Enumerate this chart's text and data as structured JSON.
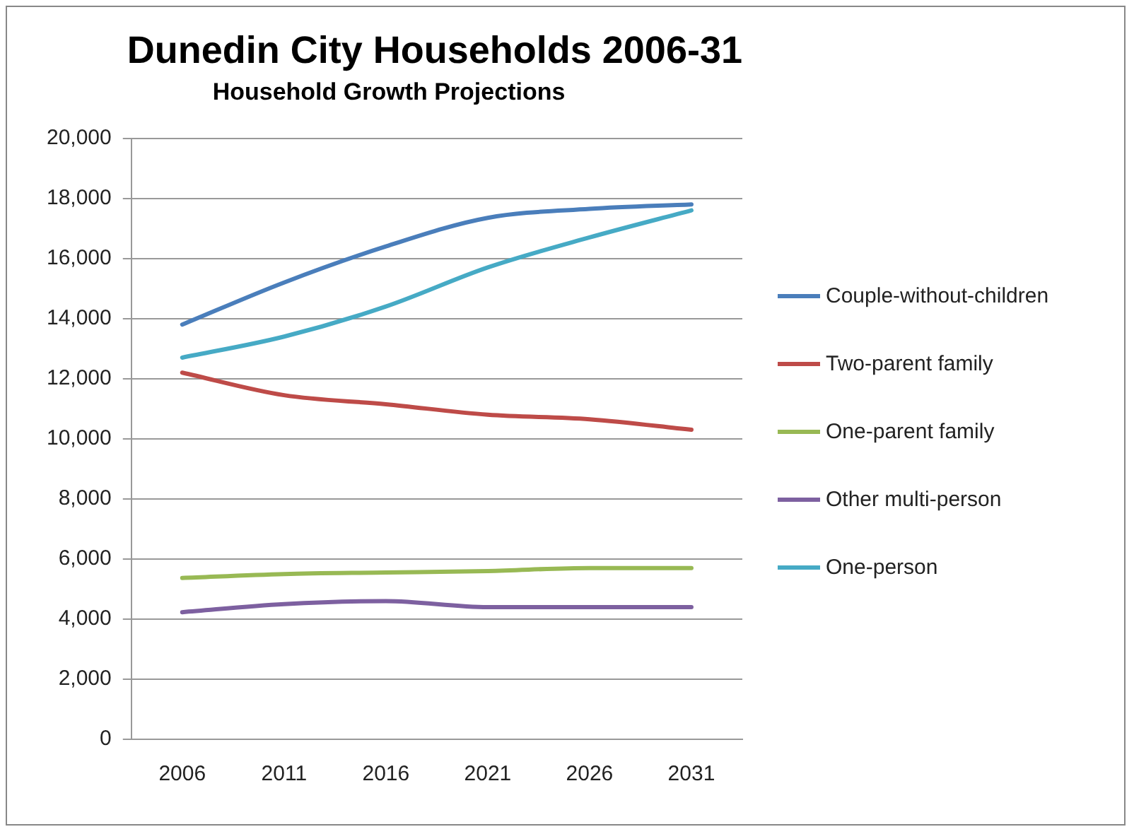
{
  "chart_data": {
    "type": "line",
    "title": "Dunedin City Households 2006-31",
    "subtitle": "Household Growth Projections",
    "categories": [
      "2006",
      "2011",
      "2016",
      "2021",
      "2026",
      "2031"
    ],
    "series": [
      {
        "name": "Couple-without-children",
        "color": "#4a7ebb",
        "values": [
          13800,
          15200,
          16400,
          17350,
          17650,
          17800
        ]
      },
      {
        "name": "Two-parent family",
        "color": "#be4b48",
        "values": [
          12200,
          11450,
          11150,
          10800,
          10650,
          10300
        ]
      },
      {
        "name": "One-parent family",
        "color": "#98b954",
        "values": [
          5370,
          5500,
          5550,
          5600,
          5700,
          5700
        ]
      },
      {
        "name": "Other multi-person",
        "color": "#7d60a0",
        "values": [
          4230,
          4500,
          4600,
          4400,
          4400,
          4400
        ]
      },
      {
        "name": "One-person",
        "color": "#46aac5",
        "values": [
          12700,
          13400,
          14400,
          15700,
          16700,
          17600
        ]
      }
    ],
    "ylim": [
      0,
      20000
    ],
    "yticks": [
      0,
      {
        "value": 2000,
        "label": "2,000"
      },
      {
        "value": 4000,
        "label": "4,000"
      },
      {
        "value": 6000,
        "label": "6,000"
      },
      {
        "value": 8000,
        "label": "8,000"
      },
      {
        "value": 10000,
        "label": "10,000"
      },
      {
        "value": 12000,
        "label": "12,000"
      },
      {
        "value": 14000,
        "label": "14,000"
      },
      {
        "value": 16000,
        "label": "16,000"
      },
      {
        "value": 18000,
        "label": "18,000"
      },
      {
        "value": 20000,
        "label": "20,000"
      }
    ],
    "grid": "y",
    "legend": "right",
    "marker": "none",
    "line_style": "solid"
  }
}
